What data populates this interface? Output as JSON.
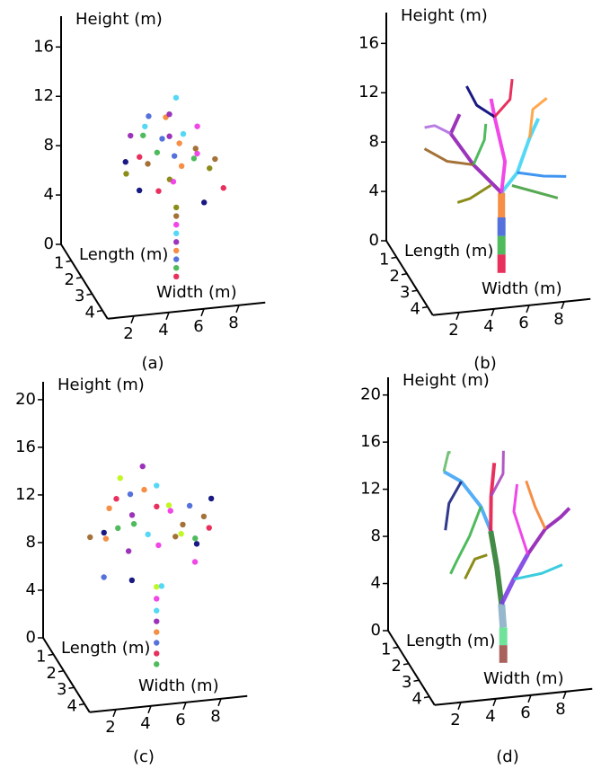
{
  "chart_data": [
    {
      "type": "scatter3d",
      "caption": "(a)",
      "z_label": "Height (m)",
      "y_label": "Length (m)",
      "x_label": "Width (m)",
      "zlim": [
        0,
        18.5
      ],
      "zticks": [
        0,
        4,
        8,
        12,
        16
      ],
      "ylim": [
        0,
        4.5
      ],
      "yticks": [
        1,
        2,
        3,
        4
      ],
      "xlim": [
        0.5,
        9.5
      ],
      "xticks": [
        2,
        4,
        6,
        8
      ],
      "colors": [
        "#e6194b",
        "#3cb44b",
        "#4363d8",
        "#f58231",
        "#911eb4",
        "#42d4f4",
        "#f032e6",
        "#9a6324",
        "#808000",
        "#000075"
      ],
      "x": [
        5.6,
        5.6,
        5.6,
        5.6,
        5.6,
        5.6,
        5.6,
        5.6,
        5.6,
        3.0,
        3.5,
        4,
        4.5,
        5,
        5.5,
        6,
        6.5,
        7,
        7.5,
        3.2,
        4,
        4.8,
        5.2,
        6.2,
        5.8,
        4.4,
        6.8,
        3.8,
        5.4,
        6.6,
        8,
        7.2,
        4.2,
        5.6,
        3.4,
        6,
        4.9,
        7.4,
        2.8
      ],
      "y": [
        2.5,
        2.5,
        2.5,
        2.5,
        2.5,
        2.5,
        2.5,
        2.5,
        2.5,
        2,
        2.5,
        2,
        3,
        2.5,
        2,
        2.5,
        3,
        2,
        2.5,
        3,
        3.5,
        2,
        3,
        2,
        1.5,
        1.5,
        2.5,
        2.8,
        2.2,
        3.5,
        3,
        1.5,
        2.2,
        2.8,
        1.8,
        1.8,
        3.4,
        3.2,
        2.4
      ],
      "z": [
        0,
        0.7,
        1.4,
        2.1,
        2.8,
        3.5,
        4.2,
        4.9,
        5.6,
        9,
        10,
        11,
        12,
        13,
        12.5,
        11.5,
        10.5,
        9.5,
        8.5,
        8,
        8.5,
        9.5,
        10.5,
        8.2,
        10,
        11,
        12,
        9.8,
        7.5,
        7.2,
        7.5,
        8,
        12.8,
        11.2,
        10.8,
        13.5,
        9,
        10.2,
        8.6
      ]
    },
    {
      "type": "tree3d",
      "caption": "(b)",
      "z_label": "Height (m)",
      "y_label": "Length (m)",
      "x_label": "Width (m)",
      "zlim": [
        0,
        18.5
      ],
      "zticks": [
        0,
        4,
        8,
        12,
        16
      ],
      "ylim": [
        0,
        4.5
      ],
      "yticks": [
        1,
        2,
        3,
        4
      ],
      "xlim": [
        0.5,
        9.5
      ],
      "xticks": [
        2,
        4,
        6,
        8
      ],
      "branches": [
        {
          "color": "#e6194b",
          "width": 9,
          "x": [
            5.6,
            5.6
          ],
          "y": [
            2.5,
            2.5
          ],
          "z": [
            0,
            1.5
          ]
        },
        {
          "color": "#3cb44b",
          "width": 9,
          "x": [
            5.6,
            5.6
          ],
          "y": [
            2.5,
            2.5
          ],
          "z": [
            1.5,
            3
          ]
        },
        {
          "color": "#4363d8",
          "width": 9,
          "x": [
            5.6,
            5.6
          ],
          "y": [
            2.5,
            2.5
          ],
          "z": [
            3,
            4.5
          ]
        },
        {
          "color": "#f58231",
          "width": 8,
          "x": [
            5.6,
            5.6
          ],
          "y": [
            2.5,
            2.5
          ],
          "z": [
            4.5,
            6.5
          ]
        },
        {
          "color": "#911eb4",
          "width": 4,
          "x": [
            5.6,
            4,
            3,
            3.5
          ],
          "y": [
            2.5,
            2.5,
            2,
            2
          ],
          "z": [
            6.5,
            9,
            11,
            12.5
          ]
        },
        {
          "color": "#42d4f4",
          "width": 4,
          "x": [
            5.6,
            6.5,
            7.5,
            8
          ],
          "y": [
            2.5,
            2.5,
            2,
            2
          ],
          "z": [
            6.5,
            8,
            10,
            11.5
          ]
        },
        {
          "color": "#f032e6",
          "width": 4,
          "x": [
            5.6,
            5.8,
            5.5,
            5.3
          ],
          "y": [
            2.5,
            2.5,
            2,
            2
          ],
          "z": [
            6.5,
            9,
            12,
            13.5
          ]
        },
        {
          "color": "#9a6324",
          "width": 3,
          "x": [
            4,
            2.5,
            1.5
          ],
          "y": [
            2.5,
            2.5,
            2
          ],
          "z": [
            9,
            9.5,
            10
          ]
        },
        {
          "color": "#2a8aef",
          "width": 3,
          "x": [
            6.5,
            8,
            9
          ],
          "y": [
            2.5,
            2.5,
            3
          ],
          "z": [
            8,
            7.5,
            8
          ]
        },
        {
          "color": "#808000",
          "width": 3,
          "x": [
            5,
            3.5,
            2.5
          ],
          "y": [
            2.5,
            3,
            3.5
          ],
          "z": [
            7.2,
            7,
            7.5
          ]
        },
        {
          "color": "#46a040",
          "width": 3,
          "x": [
            6.2,
            7.2,
            8.4
          ],
          "y": [
            2.5,
            2.8,
            3.2
          ],
          "z": [
            7,
            6.8,
            6.6
          ]
        },
        {
          "color": "#b06fe0",
          "width": 3,
          "x": [
            3,
            2.2,
            1.8
          ],
          "y": [
            2,
            1.8,
            1.5
          ],
          "z": [
            11,
            11.5,
            11
          ]
        },
        {
          "color": "#ff9d3a",
          "width": 3,
          "x": [
            7.5,
            7.8,
            8.6
          ],
          "y": [
            2,
            1.8,
            1.8
          ],
          "z": [
            10,
            12,
            12.8
          ]
        },
        {
          "color": "#000075",
          "width": 3,
          "x": [
            5.5,
            4.6,
            4.2
          ],
          "y": [
            2,
            1.8,
            1.5
          ],
          "z": [
            12,
            12.8,
            14
          ]
        },
        {
          "color": "#e6194b",
          "width": 3,
          "x": [
            5.5,
            6.5,
            6.8
          ],
          "y": [
            2,
            1.8,
            1.5
          ],
          "z": [
            12,
            13,
            14.2
          ]
        },
        {
          "color": "#3cb44b",
          "width": 3,
          "x": [
            4,
            4.8,
            5
          ],
          "y": [
            2.5,
            2.2,
            2
          ],
          "z": [
            9,
            10.5,
            11.5
          ]
        }
      ]
    },
    {
      "type": "scatter3d",
      "caption": "(c)",
      "z_label": "Height (m)",
      "y_label": "Length (m)",
      "x_label": "Width (m)",
      "zlim": [
        0,
        21.5
      ],
      "zticks": [
        0,
        4,
        8,
        12,
        16,
        20
      ],
      "ylim": [
        0,
        4.5
      ],
      "yticks": [
        1,
        2,
        3,
        4
      ],
      "xlim": [
        0.5,
        9.5
      ],
      "xticks": [
        2,
        4,
        6,
        8
      ],
      "colors": [
        "#3cb44b",
        "#e6194b",
        "#4363d8",
        "#f58231",
        "#911eb4",
        "#42d4f4",
        "#f032e6",
        "#bcf60c",
        "#9a6324",
        "#000075"
      ],
      "x": [
        5.5,
        5.5,
        5.5,
        5.5,
        5.5,
        5.5,
        5.5,
        5.5,
        2,
        2.5,
        3,
        3.5,
        4,
        4.5,
        5,
        5.5,
        6,
        6.5,
        7,
        7.5,
        8,
        8.5,
        2.2,
        3.2,
        4.2,
        5.2,
        6.2,
        7.2,
        8.2,
        3.8,
        4.8,
        5.8,
        6.8,
        2.8,
        4.4,
        5.6,
        7.4,
        3.6,
        6.4,
        8.8
      ],
      "y": [
        2.5,
        2.5,
        2.5,
        2.5,
        2.5,
        2.5,
        2.5,
        2.5,
        2,
        2.5,
        3,
        2,
        2.5,
        3,
        2,
        2.5,
        3,
        2,
        2.5,
        3,
        2,
        2.5,
        3,
        1.5,
        2,
        3.5,
        1.5,
        2,
        2.5,
        3,
        1.5,
        2,
        3.5,
        2.5,
        2,
        1.5,
        3,
        2.2,
        2.8,
        2.2
      ],
      "z": [
        0.5,
        1.4,
        2.3,
        3.2,
        4.1,
        5,
        6,
        7,
        11,
        12,
        13,
        14,
        15,
        16,
        16.5,
        15.5,
        14,
        13,
        12,
        11,
        10,
        11.5,
        9,
        10,
        9.5,
        8.5,
        9,
        10.5,
        12.5,
        8.5,
        11,
        13,
        15,
        14,
        12.5,
        10,
        9.5,
        16,
        11.5,
        13.5
      ]
    },
    {
      "type": "tree3d",
      "caption": "(d)",
      "z_label": "Height (m)",
      "y_label": "Length (m)",
      "x_label": "Width (m)",
      "zlim": [
        0,
        21.5
      ],
      "zticks": [
        0,
        4,
        8,
        12,
        16,
        20
      ],
      "ylim": [
        0,
        4.5
      ],
      "yticks": [
        1,
        2,
        3,
        4
      ],
      "xlim": [
        0.5,
        9.5
      ],
      "xticks": [
        2,
        4,
        6,
        8
      ],
      "branches": [
        {
          "color": "#a0504a",
          "width": 9,
          "x": [
            5.6,
            5.6
          ],
          "y": [
            2.5,
            2.5
          ],
          "z": [
            0,
            1.5
          ]
        },
        {
          "color": "#60e090",
          "width": 9,
          "x": [
            5.6,
            5.6
          ],
          "y": [
            2.5,
            2.5
          ],
          "z": [
            1.5,
            3
          ]
        },
        {
          "color": "#8ab0c8",
          "width": 8,
          "x": [
            5.6,
            5.5
          ],
          "y": [
            2.5,
            2.5
          ],
          "z": [
            3,
            5
          ]
        },
        {
          "color": "#2e7d32",
          "width": 6,
          "x": [
            5.5,
            5.3,
            5
          ],
          "y": [
            2.5,
            2.4,
            2.3
          ],
          "z": [
            5,
            8,
            11
          ]
        },
        {
          "color": "#7b3fe4",
          "width": 5,
          "x": [
            5.5,
            6.2,
            7
          ],
          "y": [
            2.5,
            2.5,
            2.5
          ],
          "z": [
            5,
            7,
            9
          ]
        },
        {
          "color": "#42a5f5",
          "width": 4,
          "x": [
            5,
            4.5,
            3.5,
            2.5
          ],
          "y": [
            2.3,
            2.2,
            2,
            2
          ],
          "z": [
            11,
            13,
            15,
            16
          ]
        },
        {
          "color": "#e6194b",
          "width": 4,
          "x": [
            5,
            5.2,
            5.5
          ],
          "y": [
            2.3,
            2,
            1.8
          ],
          "z": [
            11,
            13.5,
            16
          ]
        },
        {
          "color": "#911eb4",
          "width": 4,
          "x": [
            7,
            8,
            8.8,
            9.2
          ],
          "y": [
            2.5,
            2.5,
            2.6,
            2.8
          ],
          "z": [
            9,
            11,
            12,
            13
          ]
        },
        {
          "color": "#3cb44b",
          "width": 3,
          "x": [
            4.5,
            3.5,
            2.5,
            2
          ],
          "y": [
            2.2,
            2.8,
            3.2,
            3.5
          ],
          "z": [
            13,
            11.5,
            10,
            9.5
          ]
        },
        {
          "color": "#f032e6",
          "width": 3,
          "x": [
            7,
            6.5,
            6.8
          ],
          "y": [
            2.5,
            2,
            1.8
          ],
          "z": [
            9,
            12,
            14
          ]
        },
        {
          "color": "#1a237e",
          "width": 3,
          "x": [
            3.5,
            2.5,
            2
          ],
          "y": [
            2,
            2.5,
            3
          ],
          "z": [
            15,
            14,
            12.5
          ]
        },
        {
          "color": "#f58231",
          "width": 3,
          "x": [
            8,
            7.6,
            7.2
          ],
          "y": [
            2.5,
            2.2,
            2
          ],
          "z": [
            11,
            12.5,
            14.5
          ]
        },
        {
          "color": "#26c6da",
          "width": 3,
          "x": [
            6.2,
            7.5,
            8.5
          ],
          "y": [
            2.5,
            3,
            3.3
          ],
          "z": [
            7,
            8,
            9
          ]
        },
        {
          "color": "#808000",
          "width": 3,
          "x": [
            4.8,
            3.8,
            3
          ],
          "y": [
            2.3,
            2.8,
            3.2
          ],
          "z": [
            9,
            9.5,
            8.5
          ]
        },
        {
          "color": "#ab47bc",
          "width": 3,
          "x": [
            5.2,
            6,
            6.2
          ],
          "y": [
            2,
            1.8,
            1.5
          ],
          "z": [
            13.5,
            15,
            16.5
          ]
        },
        {
          "color": "#66bb6a",
          "width": 3,
          "x": [
            2.5,
            3,
            3.3
          ],
          "y": [
            2,
            1.6,
            1.3
          ],
          "z": [
            16,
            17,
            16.5
          ]
        }
      ]
    }
  ]
}
